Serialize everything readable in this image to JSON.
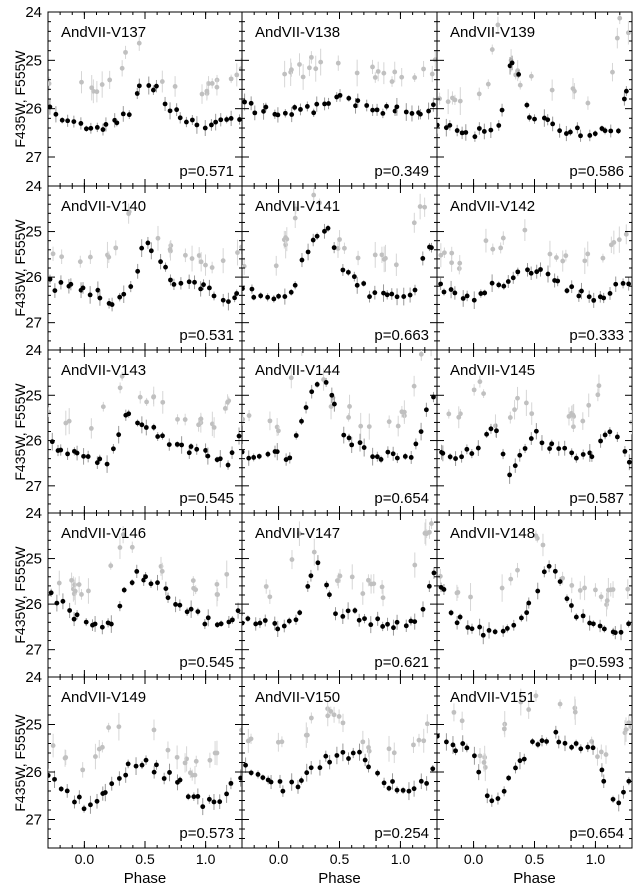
{
  "chart_data": {
    "type": "scatter",
    "layout": {
      "rows": 5,
      "cols": 3
    },
    "ylabel": "F435W, F555W",
    "xlabel": "Phase",
    "xlim": [
      -0.3,
      1.3
    ],
    "ylim": [
      27.6,
      24.0
    ],
    "y_inverted": true,
    "xticks": [
      0.0,
      0.5,
      1.0
    ],
    "yticks": [
      24,
      25,
      26,
      27
    ],
    "colors": {
      "primary": "#000000",
      "secondary": "#c0c0c0",
      "frame": "#000000"
    },
    "panels": [
      {
        "name": "AndVII-V137",
        "period": "p=0.571",
        "fit": [
          [
            0,
            26.4
          ],
          [
            0.2,
            26.3
          ],
          [
            0.4,
            26.0
          ],
          [
            0.48,
            25.35
          ],
          [
            0.6,
            25.6
          ],
          [
            0.7,
            26.0
          ],
          [
            0.85,
            26.25
          ],
          [
            1.0,
            26.4
          ]
        ]
      },
      {
        "name": "AndVII-V138",
        "period": "p=0.349",
        "fit": [
          [
            0,
            26.05
          ],
          [
            0.25,
            26.05
          ],
          [
            0.5,
            25.7
          ],
          [
            0.65,
            25.9
          ],
          [
            0.85,
            26.05
          ],
          [
            1.0,
            26.05
          ]
        ]
      },
      {
        "name": "AndVII-V139",
        "period": "p=0.586",
        "fit": [
          [
            0,
            26.5
          ],
          [
            0.2,
            26.45
          ],
          [
            0.3,
            25.0
          ],
          [
            0.35,
            25.1
          ],
          [
            0.45,
            26.1
          ],
          [
            0.7,
            26.4
          ],
          [
            1.0,
            26.5
          ]
        ]
      },
      {
        "name": "AndVII-V140",
        "period": "p=0.531",
        "fit": [
          [
            0,
            26.2
          ],
          [
            0.2,
            26.55
          ],
          [
            0.4,
            26.2
          ],
          [
            0.5,
            25.15
          ],
          [
            0.6,
            25.6
          ],
          [
            0.75,
            26.2
          ],
          [
            1.0,
            26.2
          ]
        ]
      },
      {
        "name": "AndVII-V141",
        "period": "p=0.663",
        "fit": [
          [
            0,
            26.4
          ],
          [
            0.1,
            26.45
          ],
          [
            0.2,
            25.5
          ],
          [
            0.4,
            25.0
          ],
          [
            0.55,
            25.9
          ],
          [
            0.75,
            26.35
          ],
          [
            1.0,
            26.4
          ]
        ]
      },
      {
        "name": "AndVII-V142",
        "period": "p=0.333",
        "fit": [
          [
            0,
            26.5
          ],
          [
            0.15,
            26.2
          ],
          [
            0.4,
            25.95
          ],
          [
            0.55,
            25.8
          ],
          [
            0.75,
            26.3
          ],
          [
            0.9,
            26.35
          ],
          [
            1.0,
            26.5
          ]
        ]
      },
      {
        "name": "AndVII-V143",
        "period": "p=0.545",
        "fit": [
          [
            0,
            26.3
          ],
          [
            0.2,
            26.5
          ],
          [
            0.35,
            25.4
          ],
          [
            0.5,
            25.6
          ],
          [
            0.75,
            26.1
          ],
          [
            0.95,
            26.3
          ],
          [
            1.0,
            26.3
          ]
        ]
      },
      {
        "name": "AndVII-V144",
        "period": "p=0.654",
        "fit": [
          [
            0,
            26.35
          ],
          [
            0.1,
            26.4
          ],
          [
            0.2,
            25.5
          ],
          [
            0.3,
            24.7
          ],
          [
            0.4,
            24.6
          ],
          [
            0.5,
            25.8
          ],
          [
            0.75,
            26.3
          ],
          [
            1.0,
            26.35
          ]
        ]
      },
      {
        "name": "AndVII-V145",
        "period": "p=0.587",
        "fit": [
          [
            0,
            26.3
          ],
          [
            0.15,
            25.6
          ],
          [
            0.3,
            26.7
          ],
          [
            0.5,
            25.8
          ],
          [
            0.65,
            26.2
          ],
          [
            0.85,
            26.3
          ],
          [
            1.0,
            26.3
          ]
        ]
      },
      {
        "name": "AndVII-V146",
        "period": "p=0.545",
        "fit": [
          [
            0,
            26.4
          ],
          [
            0.2,
            26.5
          ],
          [
            0.35,
            25.6
          ],
          [
            0.45,
            25.3
          ],
          [
            0.65,
            25.7
          ],
          [
            0.85,
            26.1
          ],
          [
            1.0,
            26.4
          ]
        ]
      },
      {
        "name": "AndVII-V147",
        "period": "p=0.621",
        "fit": [
          [
            0,
            26.5
          ],
          [
            0.15,
            26.4
          ],
          [
            0.25,
            25.5
          ],
          [
            0.35,
            25.0
          ],
          [
            0.45,
            26.1
          ],
          [
            0.75,
            26.35
          ],
          [
            1.0,
            26.5
          ]
        ]
      },
      {
        "name": "AndVII-V148",
        "period": "p=0.593",
        "fit": [
          [
            0,
            26.5
          ],
          [
            0.15,
            26.7
          ],
          [
            0.35,
            26.4
          ],
          [
            0.5,
            25.9
          ],
          [
            0.6,
            25.1
          ],
          [
            0.7,
            25.4
          ],
          [
            0.85,
            26.3
          ],
          [
            1.0,
            26.5
          ]
        ]
      },
      {
        "name": "AndVII-V149",
        "period": "p=0.573",
        "fit": [
          [
            0,
            26.7
          ],
          [
            0.15,
            26.5
          ],
          [
            0.3,
            26.0
          ],
          [
            0.5,
            25.8
          ],
          [
            0.7,
            26.1
          ],
          [
            0.9,
            26.5
          ],
          [
            1.0,
            26.7
          ]
        ]
      },
      {
        "name": "AndVII-V150",
        "period": "p=0.254",
        "fit": [
          [
            0,
            26.3
          ],
          [
            0.15,
            26.3
          ],
          [
            0.35,
            25.8
          ],
          [
            0.5,
            25.6
          ],
          [
            0.7,
            25.7
          ],
          [
            0.85,
            26.2
          ],
          [
            1.0,
            26.3
          ]
        ]
      },
      {
        "name": "AndVII-V151",
        "period": "p=0.654",
        "fit": [
          [
            0,
            25.6
          ],
          [
            0.1,
            26.4
          ],
          [
            0.2,
            26.6
          ],
          [
            0.35,
            25.8
          ],
          [
            0.5,
            25.4
          ],
          [
            0.65,
            25.2
          ],
          [
            0.8,
            25.4
          ],
          [
            1.0,
            25.6
          ]
        ]
      }
    ]
  }
}
